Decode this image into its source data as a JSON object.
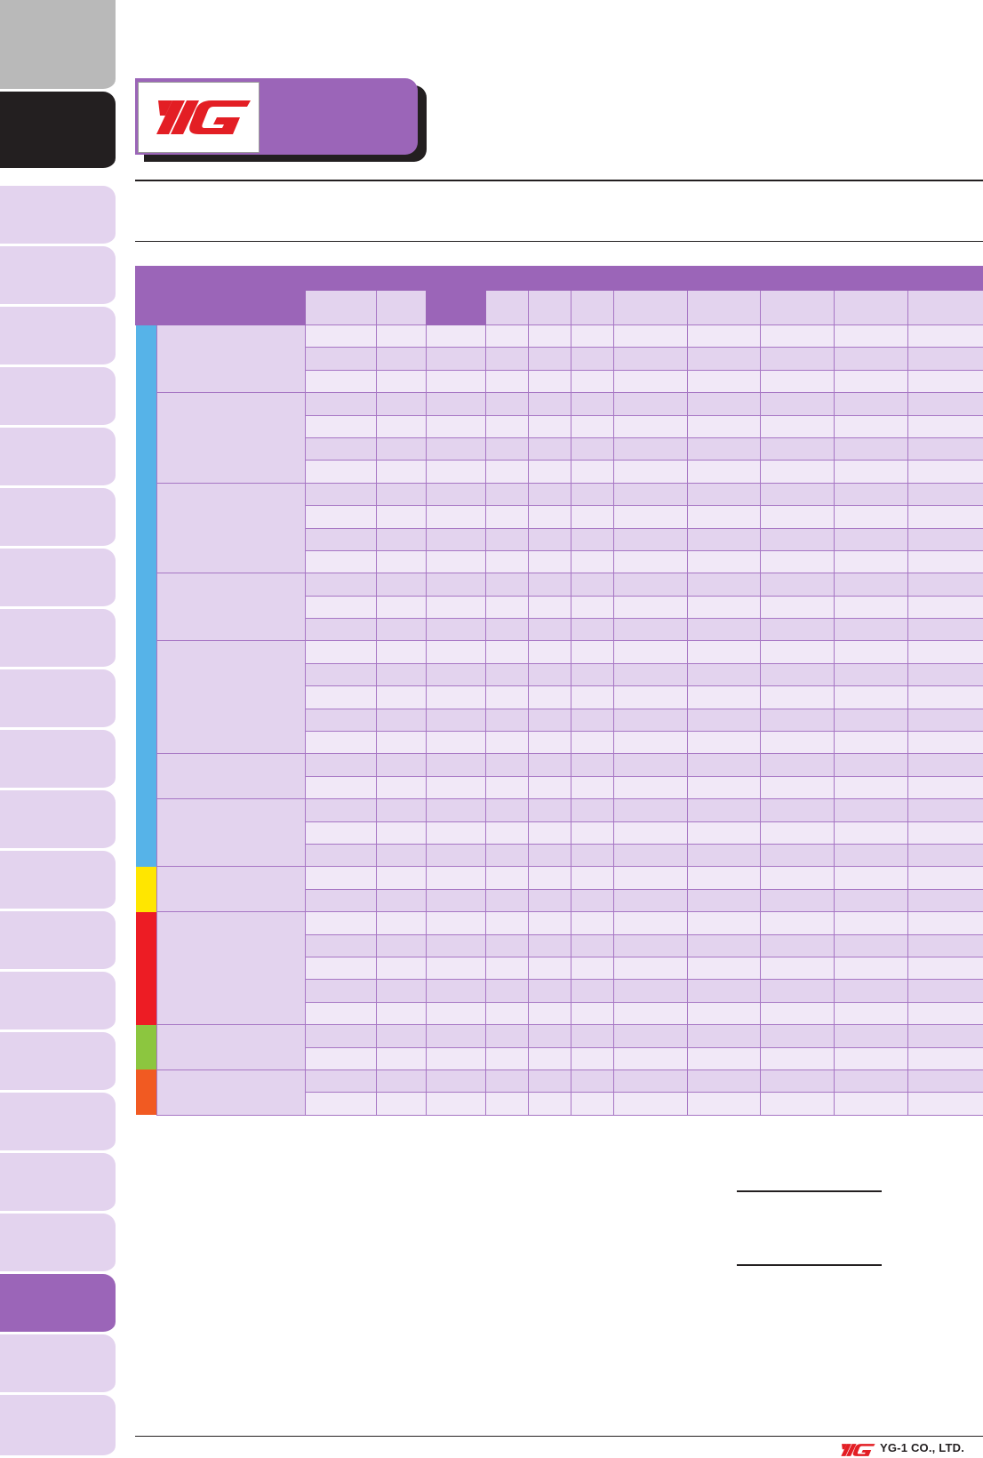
{
  "footer": {
    "company_name": "YG-1 CO., LTD."
  },
  "colors": {
    "accent_purple": "#9b65b8",
    "light_purple": "#e3d3ee",
    "row_light": "#f1e8f7",
    "group_blue": "#56b3e8",
    "group_yellow": "#ffe600",
    "group_red": "#ed1c24",
    "group_green": "#8cc63f",
    "group_orange": "#f15a22"
  },
  "table": {
    "material_groups": [
      {
        "color": "blue",
        "subgroups": [
          3,
          4,
          4,
          3,
          5,
          2,
          3
        ]
      },
      {
        "color": "yellow",
        "subgroups": [
          2
        ]
      },
      {
        "color": "red",
        "subgroups": [
          5
        ]
      },
      {
        "color": "green",
        "subgroups": [
          2
        ]
      },
      {
        "color": "orange",
        "subgroups": [
          2
        ]
      }
    ]
  }
}
